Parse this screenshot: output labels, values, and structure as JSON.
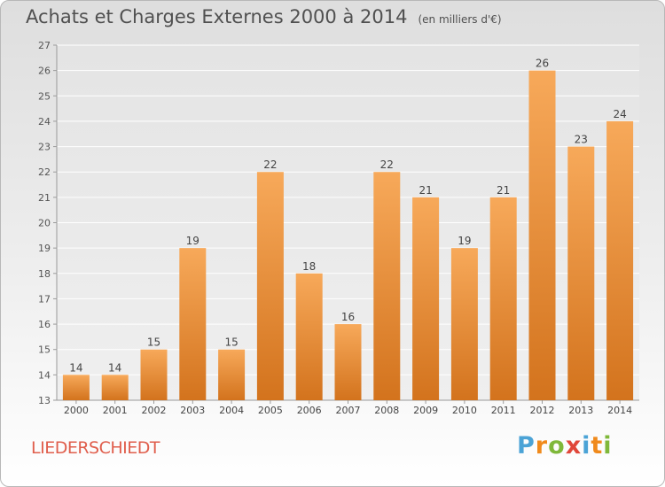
{
  "header": {
    "title": "Achats et Charges Externes 2000 à 2014",
    "subtitle": "(en milliers d'€)"
  },
  "footer": {
    "commune": "LIEDERSCHIEDT",
    "logo": "Proxiti"
  },
  "colors": {
    "bar_top": "#f7a95a",
    "bar_bottom": "#d3731d",
    "commune_text": "#e05e4c",
    "logo_letters": [
      "#4ba3d6",
      "#f08a1c",
      "#7fb83a",
      "#e0473a",
      "#4ba3d6",
      "#f08a1c",
      "#7fb83a"
    ]
  },
  "chart_data": {
    "type": "bar",
    "categories": [
      "2000",
      "2001",
      "2002",
      "2003",
      "2004",
      "2005",
      "2006",
      "2007",
      "2008",
      "2009",
      "2010",
      "2011",
      "2012",
      "2013",
      "2014"
    ],
    "values": [
      14,
      14,
      15,
      19,
      15,
      22,
      18,
      16,
      22,
      21,
      19,
      21,
      26,
      23,
      24
    ],
    "title": "Achats et Charges Externes 2000 à 2014",
    "ylim": [
      13,
      27
    ],
    "yticks": [
      13,
      14,
      15,
      16,
      17,
      18,
      19,
      20,
      21,
      22,
      23,
      24,
      25,
      26,
      27
    ],
    "grid": true,
    "data_labels": true
  }
}
